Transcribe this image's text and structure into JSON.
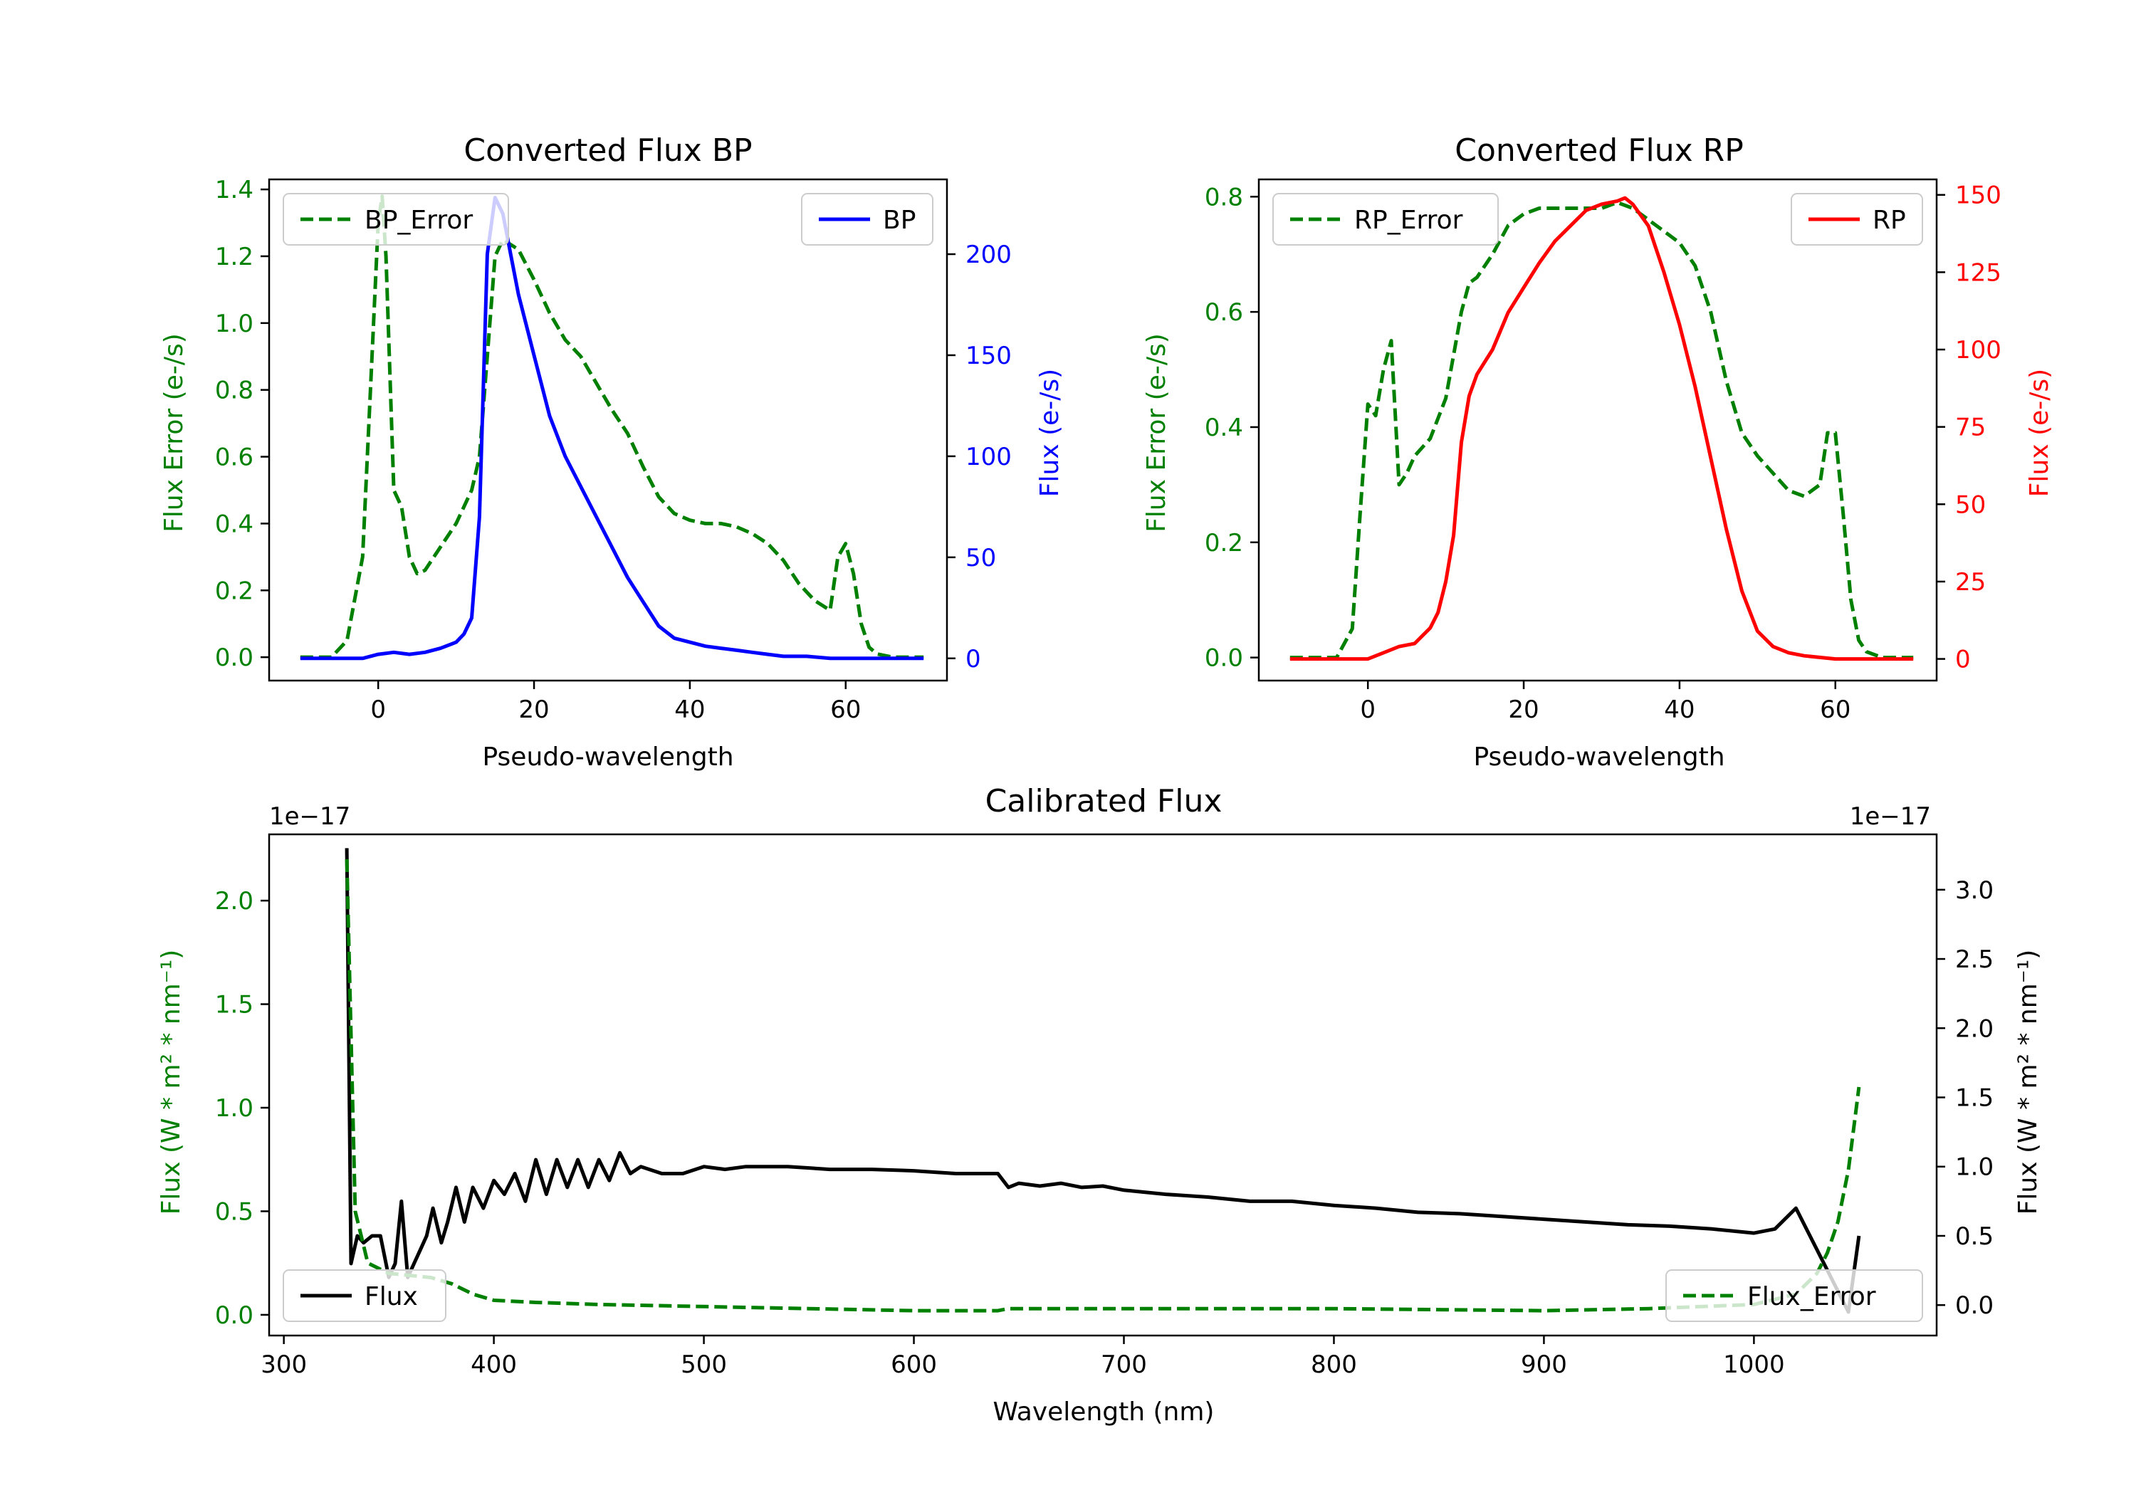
{
  "chart_data": [
    {
      "type": "line",
      "title": "Converted Flux BP",
      "xlabel": "Pseudo-wavelength",
      "ylabel_left": "Flux Error (e-/s)",
      "ylabel_right": "Flux (e-/s)",
      "xlim": [
        -14,
        73
      ],
      "ylim_left": [
        -0.07,
        1.43
      ],
      "ylim_right": [
        -11,
        237
      ],
      "xticks": [
        0,
        20,
        40,
        60
      ],
      "yticks_left": [
        0.0,
        0.2,
        0.4,
        0.6,
        0.8,
        1.0,
        1.2,
        1.4
      ],
      "ytick_labels_left": [
        "0.0",
        "0.2",
        "0.4",
        "0.6",
        "0.8",
        "1.0",
        "1.2",
        "1.4"
      ],
      "yticks_right": [
        0,
        50,
        100,
        150,
        200
      ],
      "ytick_labels_right": [
        "0",
        "50",
        "100",
        "150",
        "200"
      ],
      "left_color": "#008000",
      "right_color": "#0000ff",
      "series": [
        {
          "name": "BP_Error",
          "axis": "left",
          "style": "dashed",
          "color": "#008000",
          "legend": "top-left",
          "x": [
            -10,
            -6,
            -4,
            -2,
            -1,
            0,
            0.5,
            1,
            2,
            3,
            4,
            5,
            6,
            8,
            10,
            12,
            13,
            14,
            15,
            16,
            18,
            20,
            22,
            24,
            26,
            28,
            30,
            32,
            34,
            36,
            38,
            40,
            42,
            44,
            46,
            48,
            50,
            52,
            54,
            56,
            58,
            59,
            60,
            61,
            62,
            63,
            64,
            66,
            70
          ],
          "y": [
            0.0,
            0.0,
            0.05,
            0.3,
            0.8,
            1.3,
            1.38,
            1.2,
            0.5,
            0.45,
            0.3,
            0.25,
            0.26,
            0.33,
            0.4,
            0.5,
            0.6,
            0.9,
            1.2,
            1.25,
            1.22,
            1.13,
            1.03,
            0.95,
            0.9,
            0.82,
            0.74,
            0.67,
            0.57,
            0.48,
            0.43,
            0.41,
            0.4,
            0.4,
            0.39,
            0.37,
            0.34,
            0.29,
            0.22,
            0.17,
            0.14,
            0.3,
            0.34,
            0.25,
            0.1,
            0.03,
            0.01,
            0.0,
            0.0
          ]
        },
        {
          "name": "BP",
          "axis": "right",
          "style": "solid",
          "color": "#0000ff",
          "legend": "top-right",
          "x": [
            -10,
            -2,
            0,
            2,
            4,
            6,
            8,
            10,
            11,
            12,
            13,
            14,
            15,
            16,
            17,
            18,
            20,
            22,
            24,
            26,
            28,
            30,
            32,
            34,
            36,
            38,
            40,
            42,
            44,
            46,
            48,
            50,
            52,
            55,
            58,
            60,
            62,
            65,
            70
          ],
          "y": [
            0,
            0,
            2,
            3,
            2,
            3,
            5,
            8,
            12,
            20,
            70,
            200,
            228,
            220,
            200,
            180,
            150,
            120,
            100,
            85,
            70,
            55,
            40,
            28,
            16,
            10,
            8,
            6,
            5,
            4,
            3,
            2,
            1,
            1,
            0,
            0,
            0,
            0,
            0
          ]
        }
      ]
    },
    {
      "type": "line",
      "title": "Converted Flux RP",
      "xlabel": "Pseudo-wavelength",
      "ylabel_left": "Flux Error (e-/s)",
      "ylabel_right": "Flux (e-/s)",
      "xlim": [
        -14,
        73
      ],
      "ylim_left": [
        -0.04,
        0.83
      ],
      "ylim_right": [
        -7,
        155
      ],
      "xticks": [
        0,
        20,
        40,
        60
      ],
      "yticks_left": [
        0.0,
        0.2,
        0.4,
        0.6,
        0.8
      ],
      "ytick_labels_left": [
        "0.0",
        "0.2",
        "0.4",
        "0.6",
        "0.8"
      ],
      "yticks_right": [
        0,
        25,
        50,
        75,
        100,
        125,
        150
      ],
      "ytick_labels_right": [
        "0",
        "25",
        "50",
        "75",
        "100",
        "125",
        "150"
      ],
      "left_color": "#008000",
      "right_color": "#ff0000",
      "series": [
        {
          "name": "RP_Error",
          "axis": "left",
          "style": "dashed",
          "color": "#008000",
          "legend": "top-left",
          "x": [
            -10,
            -4,
            -2,
            -1,
            0,
            1,
            2,
            3,
            4,
            5,
            6,
            8,
            10,
            12,
            13,
            14,
            16,
            18,
            20,
            22,
            24,
            26,
            28,
            30,
            32,
            34,
            36,
            38,
            40,
            42,
            44,
            46,
            48,
            50,
            52,
            54,
            56,
            57,
            58,
            59,
            60,
            61,
            62,
            63,
            64,
            66,
            70
          ],
          "y": [
            0.0,
            0.0,
            0.05,
            0.25,
            0.44,
            0.42,
            0.5,
            0.55,
            0.3,
            0.32,
            0.35,
            0.38,
            0.45,
            0.6,
            0.65,
            0.66,
            0.7,
            0.75,
            0.77,
            0.78,
            0.78,
            0.78,
            0.78,
            0.78,
            0.79,
            0.78,
            0.76,
            0.74,
            0.72,
            0.68,
            0.6,
            0.48,
            0.39,
            0.35,
            0.32,
            0.29,
            0.28,
            0.29,
            0.3,
            0.39,
            0.39,
            0.25,
            0.1,
            0.03,
            0.01,
            0.0,
            0.0
          ]
        },
        {
          "name": "RP",
          "axis": "right",
          "style": "solid",
          "color": "#ff0000",
          "legend": "top-right",
          "x": [
            -10,
            -2,
            0,
            2,
            4,
            6,
            8,
            9,
            10,
            11,
            12,
            13,
            14,
            16,
            18,
            20,
            22,
            24,
            26,
            28,
            30,
            32,
            33,
            34,
            36,
            38,
            40,
            42,
            44,
            46,
            48,
            50,
            52,
            54,
            56,
            60,
            64,
            70
          ],
          "y": [
            0,
            0,
            0,
            2,
            4,
            5,
            10,
            15,
            25,
            40,
            70,
            85,
            92,
            100,
            112,
            120,
            128,
            135,
            140,
            145,
            147,
            148,
            149,
            147,
            140,
            125,
            108,
            88,
            65,
            42,
            22,
            9,
            4,
            2,
            1,
            0,
            0,
            0
          ]
        }
      ]
    },
    {
      "type": "line",
      "title": "Calibrated Flux",
      "xlabel": "Wavelength (nm)",
      "ylabel_left": "Flux (W * m² * nm⁻¹)",
      "ylabel_right": "Flux (W * m² * nm⁻¹)",
      "offset_left": "1e−17",
      "offset_right": "1e−17",
      "xlim": [
        293,
        1087
      ],
      "ylim_left": [
        -0.1,
        2.32
      ],
      "ylim_right": [
        -0.22,
        3.4
      ],
      "xticks": [
        300,
        400,
        500,
        600,
        700,
        800,
        900,
        1000
      ],
      "yticks_left": [
        0.0,
        0.5,
        1.0,
        1.5,
        2.0
      ],
      "ytick_labels_left": [
        "0.0",
        "0.5",
        "1.0",
        "1.5",
        "2.0"
      ],
      "yticks_right": [
        0.0,
        0.5,
        1.0,
        1.5,
        2.0,
        2.5,
        3.0
      ],
      "ytick_labels_right": [
        "0.0",
        "0.5",
        "1.0",
        "1.5",
        "2.0",
        "2.5",
        "3.0"
      ],
      "left_color": "#008000",
      "right_color": "#000000",
      "series": [
        {
          "name": "Flux",
          "axis": "right",
          "style": "solid",
          "color": "#000000",
          "legend": "bottom-left",
          "x": [
            330,
            332,
            335,
            338,
            342,
            346,
            350,
            353,
            356,
            359,
            362,
            365,
            368,
            371,
            375,
            378,
            382,
            386,
            390,
            395,
            400,
            405,
            410,
            415,
            420,
            425,
            430,
            435,
            440,
            445,
            450,
            455,
            460,
            465,
            470,
            480,
            490,
            500,
            510,
            520,
            530,
            540,
            560,
            580,
            600,
            620,
            640,
            645,
            650,
            660,
            670,
            680,
            690,
            700,
            720,
            740,
            760,
            780,
            800,
            820,
            840,
            860,
            880,
            900,
            920,
            940,
            960,
            980,
            1000,
            1010,
            1020,
            1030,
            1040,
            1045,
            1050
          ],
          "y": [
            3.3,
            0.3,
            0.5,
            0.45,
            0.5,
            0.5,
            0.2,
            0.3,
            0.75,
            0.2,
            0.3,
            0.4,
            0.5,
            0.7,
            0.45,
            0.6,
            0.85,
            0.6,
            0.85,
            0.7,
            0.9,
            0.8,
            0.95,
            0.75,
            1.05,
            0.8,
            1.05,
            0.85,
            1.05,
            0.85,
            1.05,
            0.9,
            1.1,
            0.95,
            1.0,
            0.95,
            0.95,
            1.0,
            0.98,
            1.0,
            1.0,
            1.0,
            0.98,
            0.98,
            0.97,
            0.95,
            0.95,
            0.85,
            0.88,
            0.86,
            0.88,
            0.85,
            0.86,
            0.83,
            0.8,
            0.78,
            0.75,
            0.75,
            0.72,
            0.7,
            0.67,
            0.66,
            0.64,
            0.62,
            0.6,
            0.58,
            0.57,
            0.55,
            0.52,
            0.55,
            0.7,
            0.4,
            0.1,
            -0.05,
            0.5
          ]
        },
        {
          "name": "Flux_Error",
          "axis": "left",
          "style": "dashed",
          "color": "#008000",
          "legend": "bottom-right",
          "x": [
            330,
            334,
            340,
            350,
            360,
            370,
            380,
            390,
            400,
            420,
            450,
            500,
            550,
            600,
            640,
            645,
            700,
            800,
            900,
            950,
            1000,
            1020,
            1030,
            1035,
            1040,
            1045,
            1050
          ],
          "y": [
            2.2,
            0.5,
            0.25,
            0.2,
            0.19,
            0.18,
            0.15,
            0.1,
            0.07,
            0.06,
            0.05,
            0.04,
            0.03,
            0.02,
            0.02,
            0.03,
            0.03,
            0.03,
            0.02,
            0.03,
            0.05,
            0.1,
            0.2,
            0.3,
            0.45,
            0.7,
            1.1
          ]
        }
      ]
    }
  ]
}
